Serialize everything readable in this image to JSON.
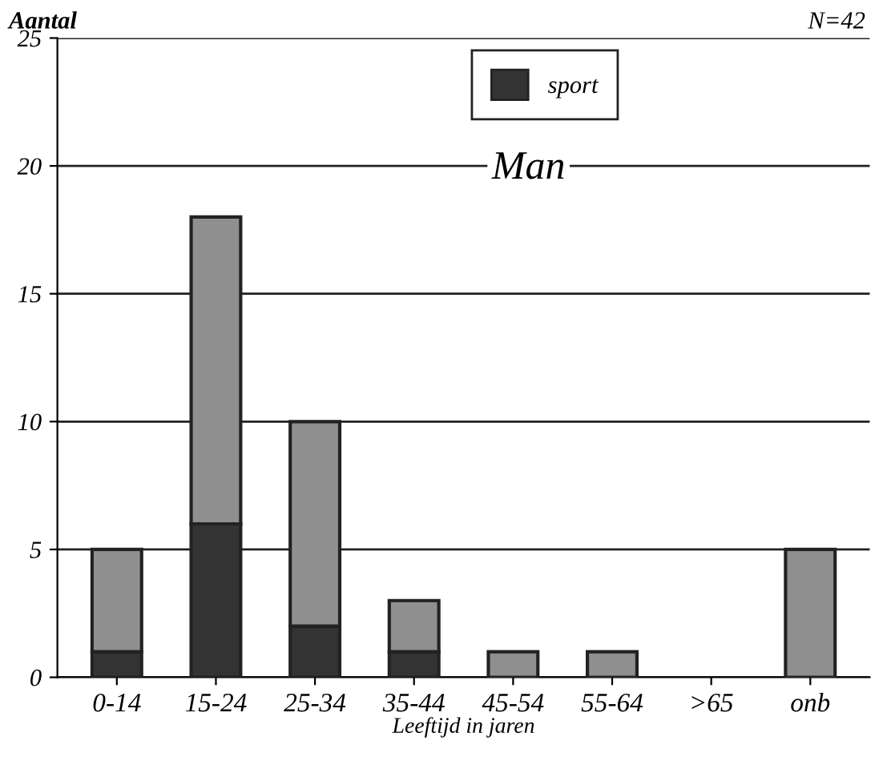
{
  "chart_data": {
    "type": "bar",
    "stacked": true,
    "ylabel": "Aantal",
    "xlabel": "Leeftijd in jaren",
    "categories": [
      "0-14",
      "15-24",
      "25-34",
      "35-44",
      "45-54",
      "55-64",
      ">65",
      "onb"
    ],
    "series": [
      {
        "name": "sport",
        "color": "#333333",
        "values": [
          1,
          6,
          2,
          1,
          0,
          0,
          0,
          0
        ]
      },
      {
        "color": "#8f8f8f",
        "values": [
          4,
          12,
          8,
          2,
          1,
          1,
          0,
          5
        ]
      }
    ],
    "ylim": [
      0,
      25
    ],
    "yticks": [
      0,
      5,
      10,
      15,
      20,
      25
    ],
    "grid": "y",
    "legend": "top",
    "annotations": [
      {
        "text": "Man"
      },
      {
        "text": "N=42"
      }
    ]
  }
}
